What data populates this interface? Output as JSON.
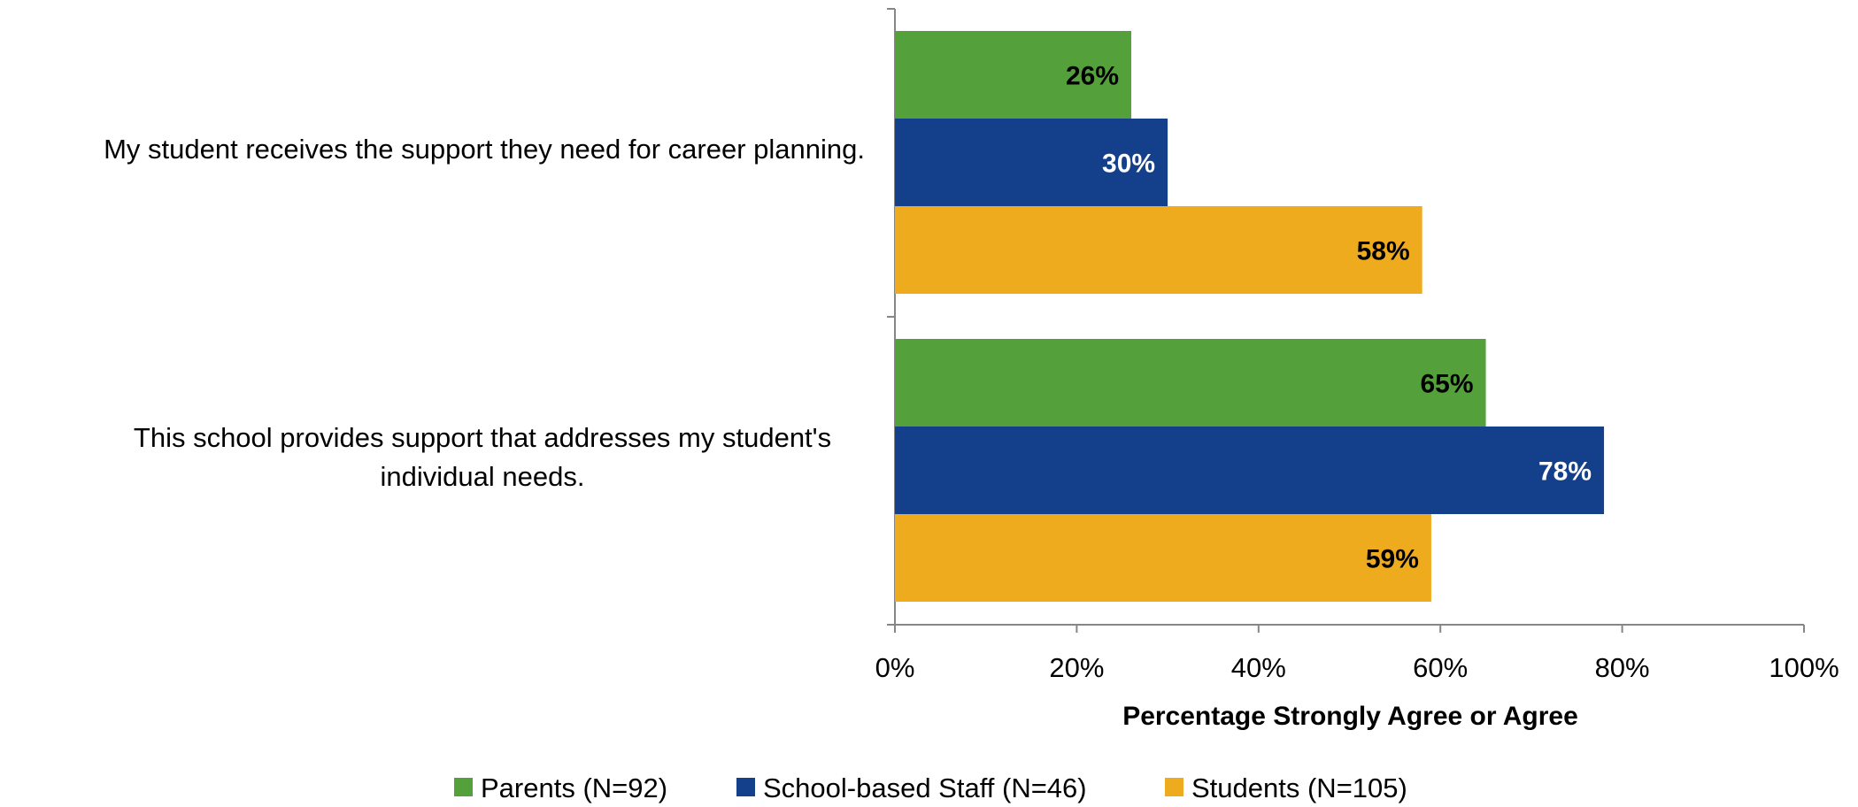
{
  "chart_data": {
    "type": "bar",
    "orientation": "horizontal",
    "categories": [
      "My student receives the support they need for career planning.",
      "This school provides support that addresses my student's individual needs."
    ],
    "category_lines": [
      [
        "My student receives the support they need for career planning."
      ],
      [
        "This school provides support that addresses my student's",
        "individual needs."
      ]
    ],
    "series": [
      {
        "name": "Parents (N=92)",
        "values": [
          26,
          65
        ],
        "color": "#54a03b",
        "label_color": "#000000"
      },
      {
        "name": "School-based Staff (N=46)",
        "values": [
          30,
          78
        ],
        "color": "#143f8a",
        "label_color": "#ffffff"
      },
      {
        "name": "Students (N=105)",
        "values": [
          58,
          59
        ],
        "color": "#efab1e",
        "label_color": "#000000"
      }
    ],
    "value_suffix": "%",
    "xlim": [
      0,
      100
    ],
    "xticks": [
      0,
      20,
      40,
      60,
      80,
      100
    ],
    "xtick_labels": [
      "0%",
      "20%",
      "40%",
      "60%",
      "80%",
      "100%"
    ],
    "xlabel": "Percentage Strongly Agree or Agree",
    "ylabel": "",
    "title": "",
    "grid": false,
    "legend_position": "bottom-center"
  }
}
